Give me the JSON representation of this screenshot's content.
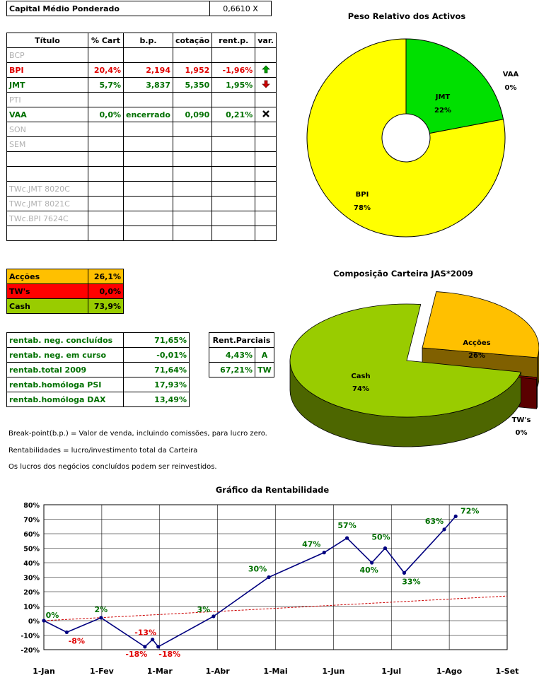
{
  "summary": {
    "label": "Capital Médio Ponderado",
    "value": "0,6610 X"
  },
  "positions": {
    "headers": [
      "Título",
      "% Cart",
      "b.p.",
      "cotação",
      "rent.p.",
      "var."
    ],
    "rows": [
      {
        "titulo": "BCP",
        "cart": "",
        "bp": "",
        "cot": "",
        "rent": "",
        "var": "",
        "style": "grey"
      },
      {
        "titulo": "BPI",
        "cart": "20,4%",
        "bp": "2,194",
        "cot": "1,952",
        "rent": "-1,96%",
        "var": "up-arrow",
        "style": "red"
      },
      {
        "titulo": "JMT",
        "cart": "5,7%",
        "bp": "3,837",
        "cot": "5,350",
        "rent": "1,95%",
        "var": "down-arrow",
        "style": "green"
      },
      {
        "titulo": "PTI",
        "cart": "",
        "bp": "",
        "cot": "",
        "rent": "",
        "var": "",
        "style": "grey"
      },
      {
        "titulo": "VAA",
        "cart": "0,0%",
        "bp": "encerrado",
        "cot": "0,090",
        "rent": "0,21%",
        "var": "x-mark",
        "style": "green"
      },
      {
        "titulo": "SON",
        "cart": "",
        "bp": "",
        "cot": "",
        "rent": "",
        "var": "",
        "style": "grey"
      },
      {
        "titulo": "SEM",
        "cart": "",
        "bp": "",
        "cot": "",
        "rent": "",
        "var": "",
        "style": "grey"
      },
      {
        "titulo": "",
        "cart": "",
        "bp": "",
        "cot": "",
        "rent": "",
        "var": "",
        "style": "grey"
      },
      {
        "titulo": "",
        "cart": "",
        "bp": "",
        "cot": "",
        "rent": "",
        "var": "",
        "style": "grey"
      },
      {
        "titulo": "TWc.JMT 8020C",
        "cart": "",
        "bp": "",
        "cot": "",
        "rent": "",
        "var": "",
        "style": "grey"
      },
      {
        "titulo": "TWc.JMT 8021C",
        "cart": "",
        "bp": "",
        "cot": "",
        "rent": "",
        "var": "",
        "style": "grey"
      },
      {
        "titulo": "TWc.BPI 7624C",
        "cart": "",
        "bp": "",
        "cot": "",
        "rent": "",
        "var": "",
        "style": "grey"
      },
      {
        "titulo": "",
        "cart": "",
        "bp": "",
        "cot": "",
        "rent": "",
        "var": "",
        "style": "grey"
      }
    ]
  },
  "mix": [
    {
      "label": "Acções",
      "value": "26,1%",
      "color": "#ffc000"
    },
    {
      "label": "TW's",
      "value": "0,0%",
      "color": "#ff0000"
    },
    {
      "label": "Cash",
      "value": "73,9%",
      "color": "#99cc00"
    }
  ],
  "returns": [
    {
      "label": "rentab. neg. concluídos",
      "value": "71,65%"
    },
    {
      "label": "rentab. neg. em curso",
      "value": "-0,01%"
    },
    {
      "label": "rentab.total 2009",
      "value": "71,64%"
    },
    {
      "label": "rentab.homóloga PSI",
      "value": "17,93%"
    },
    {
      "label": "rentab.homóloga DAX",
      "value": "13,49%"
    }
  ],
  "partials": {
    "header": "Rent.Parciais",
    "rows": [
      {
        "value": "4,43%",
        "tag": "A"
      },
      {
        "value": "67,21%",
        "tag": "TW"
      }
    ]
  },
  "notes": [
    "Break-point(b.p.) = Valor de venda, incluindo comissões, para lucro zero.",
    "Rentabilidades = lucro/investimento total da Carteira",
    "Os lucros dos negócios concluídos podem ser reinvestidos."
  ],
  "chart_data": [
    {
      "type": "pie",
      "variant": "doughnut",
      "title": "Peso Relativo dos Activos",
      "slices": [
        {
          "label": "JMT",
          "value": 22,
          "pct_label": "22%",
          "color": "#00e000"
        },
        {
          "label": "BPI",
          "value": 78,
          "pct_label": "78%",
          "color": "#ffff00"
        },
        {
          "label": "VAA",
          "value": 0,
          "pct_label": "0%",
          "color": "#ffffff"
        }
      ]
    },
    {
      "type": "pie",
      "variant": "3d-exploded",
      "title": "Composição Carteira JAS*2009",
      "slices": [
        {
          "label": "Acções",
          "value": 26,
          "pct_label": "26%",
          "color": "#ffc000"
        },
        {
          "label": "TW's",
          "value": 0.5,
          "pct_label": "0%",
          "color": "#8b0000"
        },
        {
          "label": "Cash",
          "value": 74,
          "pct_label": "74%",
          "color": "#99cc00"
        }
      ]
    },
    {
      "type": "line",
      "title": "Gráfico da Rentabilidade",
      "x_ticks": [
        "1-Jan",
        "1-Fev",
        "1-Mar",
        "1-Abr",
        "1-Mai",
        "1-Jun",
        "1-Jul",
        "1-Ago",
        "1-Set"
      ],
      "y_ticks": [
        "80%",
        "70%",
        "60%",
        "50%",
        "40%",
        "30%",
        "20%",
        "10%",
        "0%",
        "-10%",
        "-20%"
      ],
      "ylim": [
        -20,
        80
      ],
      "xlim_days": [
        0,
        243
      ],
      "grid": true,
      "series": [
        {
          "name": "",
          "color": "#00007f",
          "points": [
            {
              "day": 0,
              "value": 0,
              "label": "0%"
            },
            {
              "day": 12,
              "value": -8,
              "label": "-8%"
            },
            {
              "day": 30,
              "value": 2,
              "label": "2%"
            },
            {
              "day": 53,
              "value": -18,
              "label": "-18%"
            },
            {
              "day": 57,
              "value": -13,
              "label": "-13%"
            },
            {
              "day": 60,
              "value": -18,
              "label": "-18%"
            },
            {
              "day": 89,
              "value": 3,
              "label": "3%"
            },
            {
              "day": 118,
              "value": 30,
              "label": "30%"
            },
            {
              "day": 147,
              "value": 47,
              "label": "47%"
            },
            {
              "day": 159,
              "value": 57,
              "label": "57%"
            },
            {
              "day": 172,
              "value": 40,
              "label": "40%"
            },
            {
              "day": 179,
              "value": 50,
              "label": "50%"
            },
            {
              "day": 189,
              "value": 33,
              "label": "33%"
            },
            {
              "day": 210,
              "value": 63,
              "label": "63%"
            },
            {
              "day": 216,
              "value": 72,
              "label": "72%"
            }
          ]
        },
        {
          "name": "",
          "color": "#cc0000",
          "dashed": true,
          "points": [
            {
              "day": 0,
              "value": 0
            },
            {
              "day": 243,
              "value": 17
            }
          ]
        }
      ]
    }
  ]
}
